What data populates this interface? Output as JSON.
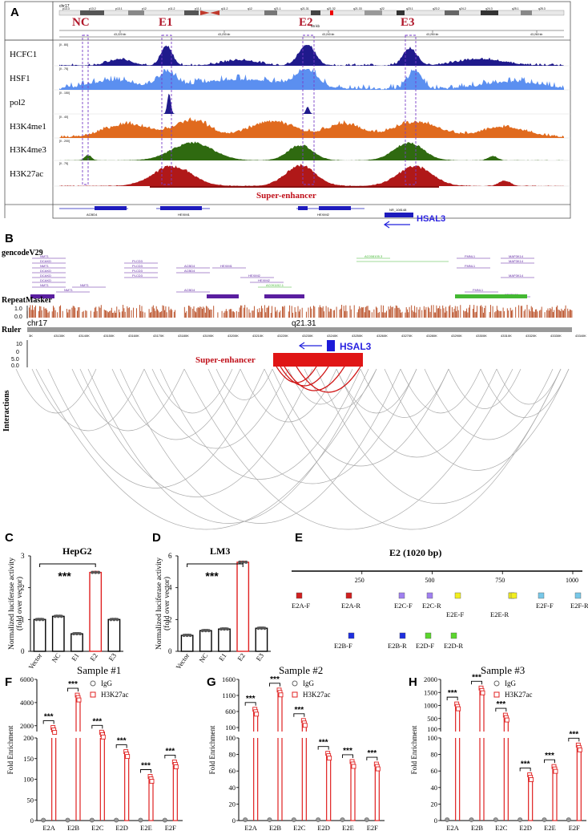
{
  "panel_labels": {
    "a": "A",
    "b": "B",
    "c": "C",
    "d": "D",
    "e": "E",
    "f": "F",
    "g": "G",
    "h": "H"
  },
  "panel_a": {
    "chromosome": "chr17",
    "ideogram_bands": [
      "p13.3",
      "p13.2",
      "p13.1",
      "p12",
      "p11.2",
      "p11.1",
      "q11.2",
      "q12",
      "q21.1",
      "q21.31",
      "q21.32",
      "q21.33",
      "q22",
      "q23.1",
      "q23.2",
      "q24.2",
      "q24.3",
      "q25.1",
      "q25.3"
    ],
    "scale_label": "46 kb",
    "coordinate_ticks": [
      "43,220 kb",
      "43,230 kb",
      "43,240 kb",
      "43,250 kb",
      "43,260 kb"
    ],
    "region_labels": [
      "NC",
      "E1",
      "E2",
      "E3"
    ],
    "tracks": [
      {
        "name": "HCFC1",
        "range": "[0 - 80]",
        "color": "#1f1a8c"
      },
      {
        "name": "HSF1",
        "range": "[0 - 75]",
        "color": "#5b8ff0"
      },
      {
        "name": "pol2",
        "range": "[0 - 150]",
        "color": "#1f1a8c"
      },
      {
        "name": "H3K4me1",
        "range": "[0 - 40]",
        "color": "#e06a1e"
      },
      {
        "name": "H3K4me3",
        "range": "[0 - 200]",
        "color": "#2f6a10"
      },
      {
        "name": "H3K27ac",
        "range": "[0 - 75]",
        "color": "#b01818"
      }
    ],
    "super_enhancer_label": "Super-enhancer",
    "genes": [
      "ACBD4",
      "HEXIM1",
      "HEXIM2",
      "NR_108148"
    ],
    "hsal3_label": "HSAL3"
  },
  "panel_b": {
    "track_gencode": "gencodeV29",
    "track_repeat": "RepeatMasker",
    "repeat_axis": [
      "1.0",
      "0.0"
    ],
    "track_ruler": "Ruler",
    "chromosome": "chr17",
    "band": "q21.31",
    "ruler_ticks": [
      "3K",
      "43130K",
      "43140K",
      "43150K",
      "43160K",
      "43170K",
      "43180K",
      "43190K",
      "43200K",
      "43210K",
      "43220K",
      "43230K",
      "43240K",
      "43250K",
      "43260K",
      "43270K",
      "43280K",
      "43290K",
      "43300K",
      "43310K",
      "43320K",
      "43330K",
      "43340K"
    ],
    "gene_labels": [
      "NMT1",
      "DCAKD",
      "NMT1",
      "DCAKD",
      "DCAKD",
      "DCAKD",
      "NMT1",
      "NMT1",
      "NMT1",
      "PLCD3",
      "PLCD3",
      "PLCD3",
      "PLCD3",
      "ACBD4",
      "ACBD4",
      "ACBD4",
      "HEXIM1",
      "HEXIM2",
      "HEXIM2",
      "FMNL1",
      "FMNL1",
      "FMNL1",
      "MAP3K14",
      "MAP3K14",
      "MAP3K14",
      "SPATA32",
      "AC008105.3",
      "AC091152.1"
    ],
    "signal_axis": [
      "10",
      "0",
      "5.0",
      "0.0"
    ],
    "hsal3_label": "HSAL3",
    "super_enhancer_label": "Super-enhancer",
    "interactions_label": "Interactions"
  },
  "chart_data": [
    {
      "id": "C",
      "type": "bar",
      "title": "HepG2",
      "ylabel": "Normalized luciferase activity (fold over vector)",
      "categories": [
        "Vector",
        "NC",
        "E1",
        "E2",
        "E3"
      ],
      "values": [
        1.0,
        1.1,
        0.55,
        2.48,
        1.0
      ],
      "highlight": "E2",
      "ylim": [
        0,
        3
      ],
      "yticks": [
        "0",
        "1",
        "2",
        "3"
      ],
      "significance": "***"
    },
    {
      "id": "D",
      "type": "bar",
      "title": "LM3",
      "ylabel": "Normalized luciferase activity (fold over vector)",
      "categories": [
        "Vector",
        "NC",
        "E1",
        "E2",
        "E3"
      ],
      "values": [
        1.0,
        1.3,
        1.4,
        5.6,
        1.45
      ],
      "highlight": "E2",
      "ylim": [
        0,
        6
      ],
      "yticks": [
        "0",
        "2",
        "4",
        "6"
      ],
      "significance": "***"
    },
    {
      "id": "E",
      "type": "other",
      "title": "E2 (1020 bp)",
      "axis_ticks": [
        "250",
        "500",
        "750",
        "1000"
      ],
      "primers_row1": [
        "E2A-F",
        "E2A-R",
        "E2C-F",
        "E2C-R",
        "E2E-F",
        "E2E-R",
        "E2F-F",
        "E2F-R"
      ],
      "primers_row2": [
        "E2B-F",
        "E2B-R",
        "E2D-F",
        "E2D-R"
      ]
    },
    {
      "id": "F",
      "type": "bar",
      "title": "Sample #1",
      "ylabel": "Fold Enrichment",
      "categories": [
        "E2A",
        "E2B",
        "E2C",
        "E2D",
        "E2E",
        "E2F"
      ],
      "series": [
        {
          "name": "IgG",
          "values": [
            1,
            1,
            1,
            1,
            1,
            1
          ]
        },
        {
          "name": "H3K27ac",
          "values": [
            1600,
            4400,
            1200,
            160,
            100,
            135
          ]
        }
      ],
      "yticks_top": [
        "2000",
        "4000",
        "6000"
      ],
      "yticks_bottom": [
        "0",
        "50",
        "100",
        "150",
        "200"
      ],
      "significance": "***"
    },
    {
      "id": "G",
      "type": "bar",
      "title": "Sample #2",
      "ylabel": "Fold Enrichment",
      "categories": [
        "E2A",
        "E2B",
        "E2C",
        "E2D",
        "E2E",
        "E2F"
      ],
      "series": [
        {
          "name": "IgG",
          "values": [
            1,
            1,
            1,
            1,
            1,
            1
          ]
        },
        {
          "name": "H3K27ac",
          "values": [
            580,
            1180,
            230,
            78,
            68,
            65
          ]
        }
      ],
      "yticks_top": [
        "100",
        "600",
        "1100",
        "1600"
      ],
      "yticks_bottom": [
        "0",
        "20",
        "40",
        "60",
        "80",
        "100"
      ],
      "significance": "***"
    },
    {
      "id": "H",
      "type": "bar",
      "title": "Sample #3",
      "ylabel": "Fold Enrichment",
      "categories": [
        "E2A",
        "E2B",
        "E2C",
        "E2D",
        "E2E",
        "E2F"
      ],
      "series": [
        {
          "name": "IgG",
          "values": [
            1,
            1,
            1,
            1,
            1,
            1
          ]
        },
        {
          "name": "H3K27ac",
          "values": [
            950,
            1560,
            520,
            52,
            62,
            88
          ]
        }
      ],
      "yticks_top": [
        "100",
        "500",
        "1000",
        "1500",
        "2000"
      ],
      "yticks_bottom": [
        "0",
        "20",
        "40",
        "60",
        "80",
        "100"
      ],
      "significance": "***"
    }
  ]
}
